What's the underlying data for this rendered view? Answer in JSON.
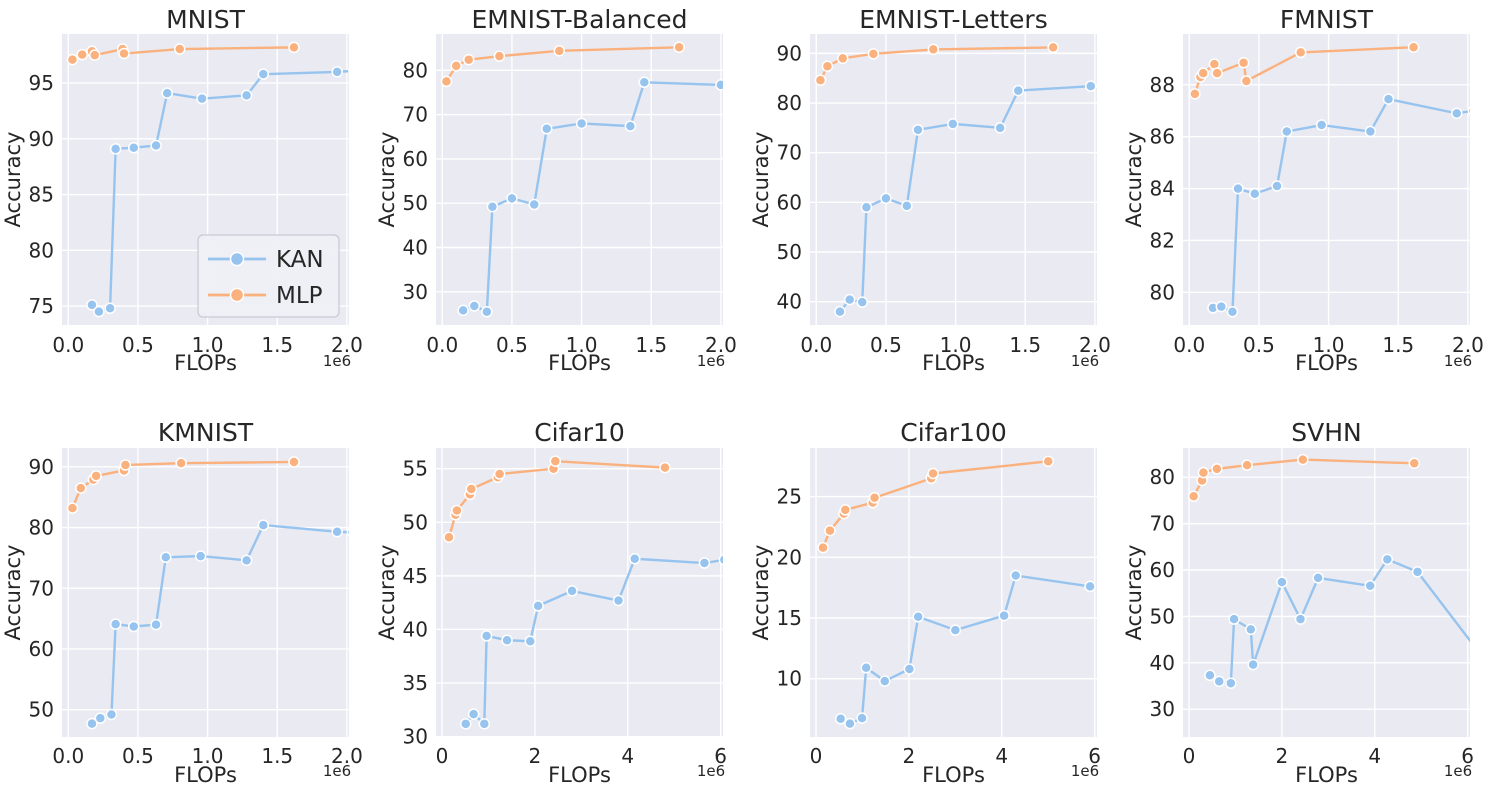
{
  "page": {
    "background": "#ffffff"
  },
  "colors": {
    "kan": "#97c4ee",
    "mlp": "#fab17d",
    "plot_bg": "#eaeaf2",
    "grid": "#ffffff",
    "text": "#262626",
    "marker_edge": "#ffffff",
    "legend_bg": "#efeff6",
    "legend_border": "#c9c9d4"
  },
  "legend": {
    "items": [
      {
        "label": "KAN",
        "series": "kan"
      },
      {
        "label": "MLP",
        "series": "mlp"
      }
    ]
  },
  "axis_labels": {
    "x": "FLOPs",
    "y": "Accuracy",
    "offset": "1e6"
  },
  "chart_data": [
    {
      "type": "line",
      "title": "MNIST",
      "xlabel": "FLOPs",
      "ylabel": "Accuracy",
      "x_offset_label": "1e6",
      "x_unit": 1000000,
      "row": 1,
      "legend_visible": true,
      "xlim": [
        -0.045,
        2.015
      ],
      "ylim": [
        73.3,
        99.4
      ],
      "xticks": [
        0,
        0.5,
        1.0,
        1.5,
        2.0
      ],
      "xtick_labels": [
        "0.0",
        "0.5",
        "1.0",
        "1.5",
        "2.0"
      ],
      "yticks": [
        75,
        80,
        85,
        90,
        95
      ],
      "series": [
        {
          "name": "KAN",
          "color_key": "kan",
          "x": [
            0.17,
            0.22,
            0.3,
            0.34,
            0.47,
            0.63,
            0.71,
            0.96,
            1.28,
            1.4,
            1.93,
            2.05
          ],
          "y": [
            75.1,
            74.5,
            74.8,
            89.1,
            89.2,
            89.4,
            94.1,
            93.6,
            93.9,
            95.8,
            96.0,
            96.1
          ]
        },
        {
          "name": "MLP",
          "color_key": "mlp",
          "x": [
            0.03,
            0.1,
            0.17,
            0.19,
            0.39,
            0.4,
            0.8,
            1.62
          ],
          "y": [
            97.1,
            97.55,
            97.85,
            97.5,
            98.05,
            97.65,
            98.05,
            98.2
          ]
        }
      ]
    },
    {
      "type": "line",
      "title": "EMNIST-Balanced",
      "xlabel": "FLOPs",
      "ylabel": "Accuracy",
      "x_offset_label": "1e6",
      "x_unit": 1000000,
      "row": 1,
      "legend_visible": false,
      "xlim": [
        -0.045,
        2.015
      ],
      "ylim": [
        22.5,
        88.2
      ],
      "xticks": [
        0,
        0.5,
        1.0,
        1.5,
        2.0
      ],
      "xtick_labels": [
        "0.0",
        "0.5",
        "1.0",
        "1.5",
        "2.0"
      ],
      "yticks": [
        30,
        40,
        50,
        60,
        70,
        80
      ],
      "series": [
        {
          "name": "KAN",
          "color_key": "kan",
          "x": [
            0.15,
            0.23,
            0.32,
            0.36,
            0.5,
            0.66,
            0.75,
            1.0,
            1.35,
            1.45,
            2.0
          ],
          "y": [
            25.8,
            26.8,
            25.5,
            49.2,
            51.1,
            49.7,
            66.8,
            68.0,
            67.4,
            77.3,
            76.7
          ]
        },
        {
          "name": "MLP",
          "color_key": "mlp",
          "x": [
            0.03,
            0.1,
            0.19,
            0.41,
            0.84,
            1.7
          ],
          "y": [
            77.5,
            81.0,
            82.4,
            83.2,
            84.4,
            85.2
          ]
        }
      ]
    },
    {
      "type": "line",
      "title": "EMNIST-Letters",
      "xlabel": "FLOPs",
      "ylabel": "Accuracy",
      "x_offset_label": "1e6",
      "x_unit": 1000000,
      "row": 1,
      "legend_visible": false,
      "xlim": [
        -0.045,
        2.015
      ],
      "ylim": [
        35.3,
        93.9
      ],
      "xticks": [
        0,
        0.5,
        1.0,
        1.5,
        2.0
      ],
      "xtick_labels": [
        "0.0",
        "0.5",
        "1.0",
        "1.5",
        "2.0"
      ],
      "yticks": [
        40,
        50,
        60,
        70,
        80,
        90
      ],
      "series": [
        {
          "name": "KAN",
          "color_key": "kan",
          "x": [
            0.17,
            0.24,
            0.33,
            0.36,
            0.5,
            0.65,
            0.73,
            0.98,
            1.32,
            1.45,
            1.97,
            2.05
          ],
          "y": [
            38.0,
            40.4,
            39.9,
            59.0,
            60.8,
            59.3,
            74.6,
            75.8,
            75.0,
            82.5,
            83.4,
            83.5
          ]
        },
        {
          "name": "MLP",
          "color_key": "mlp",
          "x": [
            0.03,
            0.08,
            0.19,
            0.41,
            0.84,
            1.7
          ],
          "y": [
            84.6,
            87.4,
            89.0,
            89.9,
            90.8,
            91.2
          ]
        }
      ]
    },
    {
      "type": "line",
      "title": "FMNIST",
      "xlabel": "FLOPs",
      "ylabel": "Accuracy",
      "x_offset_label": "1e6",
      "x_unit": 1000000,
      "row": 1,
      "legend_visible": false,
      "xlim": [
        -0.045,
        2.015
      ],
      "ylim": [
        78.74,
        89.96
      ],
      "xticks": [
        0,
        0.5,
        1.0,
        1.5,
        2.0
      ],
      "xtick_labels": [
        "0.0",
        "0.5",
        "1.0",
        "1.5",
        "2.0"
      ],
      "yticks": [
        80,
        82,
        84,
        86,
        88
      ],
      "series": [
        {
          "name": "KAN",
          "color_key": "kan",
          "x": [
            0.17,
            0.23,
            0.31,
            0.35,
            0.47,
            0.63,
            0.7,
            0.95,
            1.3,
            1.43,
            1.92,
            2.04
          ],
          "y": [
            79.4,
            79.45,
            79.25,
            84.0,
            83.8,
            84.1,
            86.2,
            86.45,
            86.2,
            87.45,
            86.9,
            87.0
          ]
        },
        {
          "name": "MLP",
          "color_key": "mlp",
          "x": [
            0.04,
            0.08,
            0.1,
            0.18,
            0.2,
            0.39,
            0.41,
            0.8,
            1.61
          ],
          "y": [
            87.65,
            88.3,
            88.45,
            88.8,
            88.45,
            88.85,
            88.15,
            89.25,
            89.45
          ]
        }
      ]
    },
    {
      "type": "line",
      "title": "KMNIST",
      "xlabel": "FLOPs",
      "ylabel": "Accuracy",
      "x_offset_label": "1e6",
      "x_unit": 1000000,
      "row": 2,
      "legend_visible": false,
      "xlim": [
        -0.045,
        2.015
      ],
      "ylim": [
        45.5,
        93.1
      ],
      "xticks": [
        0,
        0.5,
        1.0,
        1.5,
        2.0
      ],
      "xtick_labels": [
        "0.0",
        "0.5",
        "1.0",
        "1.5",
        "2.0"
      ],
      "yticks": [
        50,
        60,
        70,
        80,
        90
      ],
      "series": [
        {
          "name": "KAN",
          "color_key": "kan",
          "x": [
            0.17,
            0.23,
            0.31,
            0.34,
            0.47,
            0.63,
            0.7,
            0.95,
            1.28,
            1.4,
            1.93,
            2.04
          ],
          "y": [
            47.7,
            48.6,
            49.2,
            64.1,
            63.7,
            64.0,
            75.1,
            75.3,
            74.6,
            80.4,
            79.3,
            79.2
          ]
        },
        {
          "name": "MLP",
          "color_key": "mlp",
          "x": [
            0.03,
            0.09,
            0.18,
            0.2,
            0.4,
            0.41,
            0.81,
            1.62
          ],
          "y": [
            83.2,
            86.5,
            87.9,
            88.5,
            89.4,
            90.3,
            90.6,
            90.8
          ]
        }
      ]
    },
    {
      "type": "line",
      "title": "Cifar10",
      "xlabel": "FLOPs",
      "ylabel": "Accuracy",
      "x_offset_label": "1e6",
      "x_unit": 1000000,
      "row": 2,
      "legend_visible": false,
      "xlim": [
        -0.13,
        6.05
      ],
      "ylim": [
        29.97,
        56.93
      ],
      "xticks": [
        0,
        2,
        4,
        6
      ],
      "xtick_labels": [
        "0",
        "2",
        "4",
        "6"
      ],
      "yticks": [
        30,
        35,
        40,
        45,
        50,
        55
      ],
      "series": [
        {
          "name": "KAN",
          "color_key": "kan",
          "x": [
            0.51,
            0.68,
            0.91,
            0.96,
            1.4,
            1.9,
            2.07,
            2.8,
            3.8,
            4.15,
            5.65,
            6.08
          ],
          "y": [
            31.2,
            32.1,
            31.2,
            39.4,
            39.0,
            38.9,
            42.2,
            43.6,
            42.7,
            46.6,
            46.2,
            46.5
          ]
        },
        {
          "name": "MLP",
          "color_key": "mlp",
          "x": [
            0.15,
            0.29,
            0.32,
            0.6,
            0.63,
            1.2,
            1.24,
            2.4,
            2.44,
            4.8
          ],
          "y": [
            48.6,
            50.7,
            51.1,
            52.6,
            53.1,
            54.2,
            54.5,
            55.0,
            55.7,
            55.1
          ]
        }
      ]
    },
    {
      "type": "line",
      "title": "Cifar100",
      "xlabel": "FLOPs",
      "ylabel": "Accuracy",
      "x_offset_label": "1e6",
      "x_unit": 1000000,
      "row": 2,
      "legend_visible": false,
      "xlim": [
        -0.13,
        6.05
      ],
      "ylim": [
        5.2,
        29.0
      ],
      "xticks": [
        0,
        2,
        4,
        6
      ],
      "xtick_labels": [
        "0",
        "2",
        "4",
        "6"
      ],
      "yticks": [
        10,
        15,
        20,
        25
      ],
      "series": [
        {
          "name": "KAN",
          "color_key": "kan",
          "x": [
            0.53,
            0.73,
            0.99,
            1.08,
            1.48,
            2.01,
            2.2,
            3.0,
            4.05,
            4.3,
            5.9
          ],
          "y": [
            6.7,
            6.3,
            6.75,
            10.9,
            9.8,
            10.8,
            15.1,
            14.0,
            15.2,
            18.5,
            17.6
          ]
        },
        {
          "name": "MLP",
          "color_key": "mlp",
          "x": [
            0.15,
            0.3,
            0.6,
            0.63,
            1.22,
            1.26,
            2.48,
            2.52,
            5.0
          ],
          "y": [
            20.8,
            22.2,
            23.6,
            23.9,
            24.5,
            24.9,
            26.5,
            26.9,
            27.9
          ]
        }
      ]
    },
    {
      "type": "line",
      "title": "SVHN",
      "xlabel": "FLOPs",
      "ylabel": "Accuracy",
      "x_offset_label": "1e6",
      "x_unit": 1000000,
      "row": 2,
      "legend_visible": false,
      "xlim": [
        -0.13,
        6.05
      ],
      "ylim": [
        24.0,
        86.3
      ],
      "xticks": [
        0,
        2,
        4,
        6
      ],
      "xtick_labels": [
        "0",
        "2",
        "4",
        "6"
      ],
      "yticks": [
        30,
        40,
        50,
        60,
        70,
        80
      ],
      "series": [
        {
          "name": "KAN",
          "color_key": "kan",
          "x": [
            0.45,
            0.65,
            0.9,
            0.97,
            1.33,
            1.38,
            2.0,
            2.4,
            2.78,
            3.9,
            4.27,
            4.92,
            6.4
          ],
          "y": [
            37.3,
            36.0,
            35.6,
            49.4,
            47.2,
            39.6,
            57.4,
            49.4,
            58.3,
            56.6,
            62.3,
            59.6,
            40.2
          ]
        },
        {
          "name": "MLP",
          "color_key": "mlp",
          "x": [
            0.1,
            0.28,
            0.31,
            0.6,
            1.25,
            2.45,
            4.85
          ],
          "y": [
            75.9,
            79.3,
            81.0,
            81.8,
            82.6,
            83.8,
            83.0
          ]
        }
      ]
    }
  ]
}
